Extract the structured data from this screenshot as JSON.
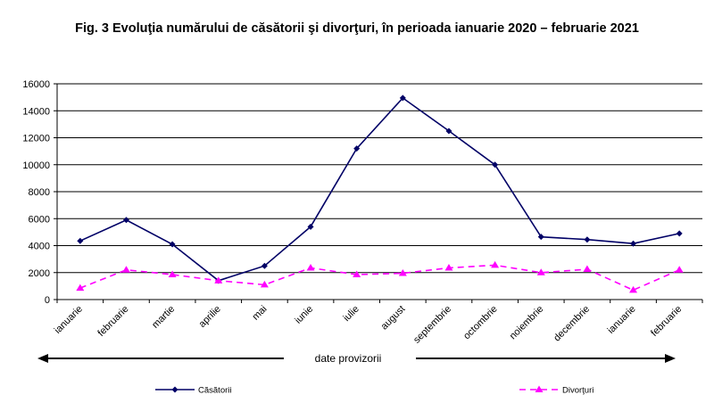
{
  "chart_data": {
    "type": "line",
    "title": "Fig. 3 Evoluţia numărului de căsătorii şi divorţuri, în perioada ianuarie 2020 – februarie 2021",
    "categories": [
      "ianuarie",
      "februarie",
      "martie",
      "aprilie",
      "mai",
      "iunie",
      "iulie",
      "august",
      "septembrie",
      "octombrie",
      "noiembrie",
      "decembrie",
      "ianuarie",
      "februarie"
    ],
    "ylim": [
      0,
      16000
    ],
    "yticks": [
      0,
      2000,
      4000,
      6000,
      8000,
      10000,
      12000,
      14000,
      16000
    ],
    "grid": true,
    "legend_position": "bottom",
    "annotation": "date provizorii",
    "series": [
      {
        "name": "Căsătorii",
        "color": "#000066",
        "style": "solid",
        "marker": "diamond",
        "values": [
          4350,
          5900,
          4100,
          1400,
          2500,
          5400,
          11200,
          14950,
          12500,
          10000,
          4650,
          4450,
          4150,
          4900
        ]
      },
      {
        "name": "Divorţuri",
        "color": "#ff00ff",
        "style": "dashed",
        "marker": "triangle",
        "values": [
          850,
          2200,
          1850,
          1400,
          1100,
          2350,
          1850,
          1950,
          2350,
          2550,
          2000,
          2250,
          700,
          2200
        ]
      }
    ]
  }
}
